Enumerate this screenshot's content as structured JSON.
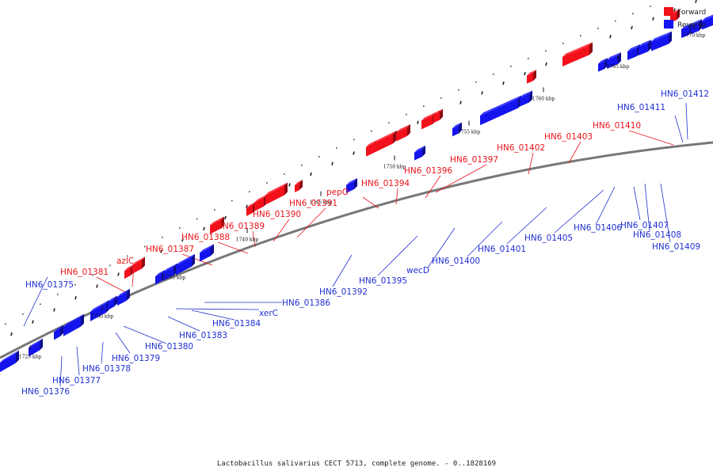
{
  "colors": {
    "forward": "#f2101a",
    "reverse": "#1414ee",
    "forward_text": "#e8141a",
    "reverse_text": "#1f2fd0"
  },
  "legend": [
    {
      "label": "Forward",
      "color": "#f2101a"
    },
    {
      "label": "Reverse",
      "color": "#1414ee"
    }
  ],
  "caption": "Lactobacillus salivarius CECT 5713, complete genome. - 0..1828169",
  "ticks": [
    "1725 kbp",
    "1730 kbp",
    "1735 kbp",
    "1740 kbp",
    "1745 kbp",
    "1750 kbp",
    "1755 kbp",
    "1760 kbp",
    "1765 kbp",
    "1770 kbp"
  ],
  "genes_forward": [
    "HN6_01381",
    "azlC",
    "HN6_01387",
    "HN6_01388",
    "HN6_01389",
    "HN6_01390",
    "HN6_01391",
    "pepO",
    "HN6_01394",
    "HN6_01396",
    "HN6_01397",
    "HN6_01402",
    "HN6_01403",
    "HN6_01410"
  ],
  "genes_reverse": [
    "HN6_01375",
    "HN6_01376",
    "HN6_01377",
    "HN6_01378",
    "HN6_01379",
    "HN6_01380",
    "HN6_01383",
    "HN6_01384",
    "xerC",
    "HN6_01386",
    "HN6_01392",
    "HN6_01395",
    "wecD",
    "HN6_01400",
    "HN6_01401",
    "HN6_01405",
    "HN6_01406",
    "HN6_01407",
    "HN6_01408",
    "HN6_01409",
    "HN6_01411",
    "HN6_01412"
  ]
}
